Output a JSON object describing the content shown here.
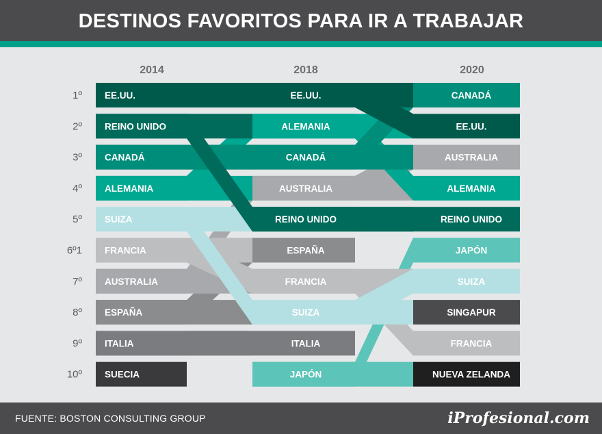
{
  "header": {
    "title": "DESTINOS FAVORITOS PARA IR A TRABAJAR"
  },
  "footer": {
    "source": "FUENTE: BOSTON CONSULTING GROUP",
    "brand": "iProfesional.com"
  },
  "chart_data": {
    "type": "bump",
    "years": [
      "2014",
      "2018",
      "2020"
    ],
    "rank_labels": [
      "1º",
      "2º",
      "3º",
      "4º",
      "5º",
      "6º1",
      "7º",
      "8º",
      "9º",
      "10º"
    ],
    "series": [
      {
        "name": "EE.UU.",
        "ranks": [
          1,
          1,
          2
        ],
        "color": "#005a4c"
      },
      {
        "name": "REINO UNIDO",
        "ranks": [
          2,
          5,
          5
        ],
        "color": "#006b5b"
      },
      {
        "name": "CANADÁ",
        "ranks": [
          3,
          3,
          1
        ],
        "color": "#008d7a"
      },
      {
        "name": "ALEMANIA",
        "ranks": [
          4,
          2,
          4
        ],
        "color": "#00a791"
      },
      {
        "name": "SUIZA",
        "ranks": [
          5,
          8,
          7
        ],
        "color": "#b5e0e3"
      },
      {
        "name": "FRANCIA",
        "ranks": [
          6,
          7,
          9
        ],
        "color": "#bcbec0"
      },
      {
        "name": "AUSTRALIA",
        "ranks": [
          7,
          4,
          3
        ],
        "color": "#a7a9ac"
      },
      {
        "name": "ESPAÑA",
        "ranks": [
          8,
          6,
          null
        ],
        "color": "#8a8c8e"
      },
      {
        "name": "ITALIA",
        "ranks": [
          9,
          9,
          null
        ],
        "color": "#7b7c7f"
      },
      {
        "name": "SUECIA",
        "ranks": [
          10,
          null,
          null
        ],
        "color": "#3a3a3c"
      },
      {
        "name": "JAPÓN",
        "ranks": [
          null,
          10,
          6
        ],
        "color": "#5cc4b8"
      },
      {
        "name": "SINGAPUR",
        "ranks": [
          null,
          null,
          8
        ],
        "color": "#4b4b4d"
      },
      {
        "name": "NUEVA ZELANDA",
        "ranks": [
          null,
          null,
          10
        ],
        "color": "#1f1f20"
      }
    ]
  }
}
